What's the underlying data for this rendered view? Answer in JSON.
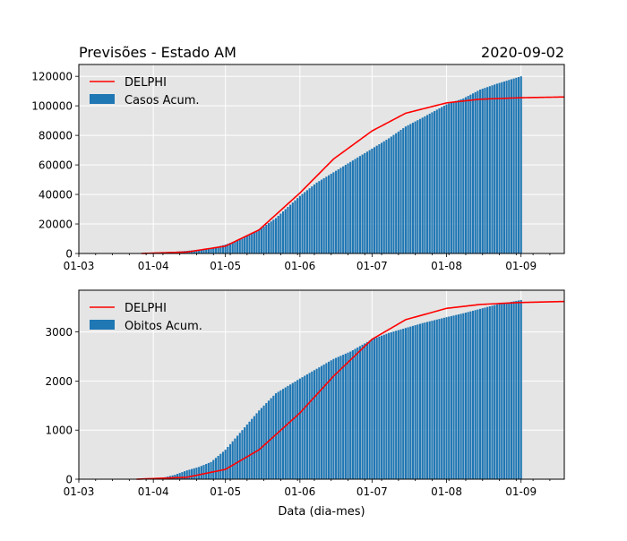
{
  "figure": {
    "title_left": "Previsões - Estado AM",
    "title_right": "2020-09-02",
    "xlabel": "Data (dia-mes)"
  },
  "colors": {
    "bar": "#1f77b4",
    "model_line": "#ff0000",
    "plot_background": "#e5e5e5",
    "grid": "#ffffff"
  },
  "x_axis": {
    "start_date": "2020-03-01",
    "end_date": "2020-09-19",
    "tick_dates": [
      "2020-03-01",
      "2020-04-01",
      "2020-05-01",
      "2020-06-01",
      "2020-07-01",
      "2020-08-01",
      "2020-09-01"
    ],
    "tick_labels": [
      "01-03",
      "01-04",
      "01-05",
      "01-06",
      "01-07",
      "01-08",
      "01-09"
    ]
  },
  "chart_data": [
    {
      "type": "bar",
      "name": "top",
      "ylim": [
        0,
        128000
      ],
      "y_ticks": [
        0,
        20000,
        40000,
        60000,
        80000,
        100000,
        120000
      ],
      "y_tick_labels": [
        "0",
        "20000",
        "40000",
        "60000",
        "80000",
        "100000",
        "120000"
      ],
      "grid": true,
      "legend_position": "top-left",
      "legend": [
        "DELPHI",
        "Casos Acum."
      ],
      "bars": {
        "name": "Casos Acum.",
        "first_date": "2020-03-31",
        "last_date": "2020-09-01",
        "anchors": [
          {
            "date": "2020-03-31",
            "value": 300
          },
          {
            "date": "2020-04-05",
            "value": 800
          },
          {
            "date": "2020-04-10",
            "value": 1200
          },
          {
            "date": "2020-04-15",
            "value": 1800
          },
          {
            "date": "2020-04-20",
            "value": 2500
          },
          {
            "date": "2020-04-25",
            "value": 3500
          },
          {
            "date": "2020-05-01",
            "value": 6000
          },
          {
            "date": "2020-05-08",
            "value": 10000
          },
          {
            "date": "2020-05-15",
            "value": 16000
          },
          {
            "date": "2020-05-22",
            "value": 24000
          },
          {
            "date": "2020-06-01",
            "value": 39000
          },
          {
            "date": "2020-06-08",
            "value": 48000
          },
          {
            "date": "2020-06-15",
            "value": 55000
          },
          {
            "date": "2020-06-22",
            "value": 62000
          },
          {
            "date": "2020-07-01",
            "value": 71000
          },
          {
            "date": "2020-07-08",
            "value": 78000
          },
          {
            "date": "2020-07-15",
            "value": 86000
          },
          {
            "date": "2020-07-22",
            "value": 92000
          },
          {
            "date": "2020-08-01",
            "value": 101000
          },
          {
            "date": "2020-08-08",
            "value": 105000
          },
          {
            "date": "2020-08-15",
            "value": 111000
          },
          {
            "date": "2020-08-22",
            "value": 115000
          },
          {
            "date": "2020-09-01",
            "value": 120000
          }
        ]
      },
      "line": {
        "name": "DELPHI",
        "first_date": "2020-03-27",
        "points": [
          {
            "date": "2020-03-27",
            "value": 0
          },
          {
            "date": "2020-04-15",
            "value": 1000
          },
          {
            "date": "2020-05-01",
            "value": 5000
          },
          {
            "date": "2020-05-15",
            "value": 16000
          },
          {
            "date": "2020-06-01",
            "value": 41000
          },
          {
            "date": "2020-06-15",
            "value": 64000
          },
          {
            "date": "2020-07-01",
            "value": 83000
          },
          {
            "date": "2020-07-15",
            "value": 95000
          },
          {
            "date": "2020-08-01",
            "value": 102000
          },
          {
            "date": "2020-08-15",
            "value": 104500
          },
          {
            "date": "2020-09-01",
            "value": 105500
          },
          {
            "date": "2020-09-19",
            "value": 106000
          }
        ]
      }
    },
    {
      "type": "bar",
      "name": "bottom",
      "ylim": [
        0,
        3850
      ],
      "y_ticks": [
        0,
        1000,
        2000,
        3000
      ],
      "y_tick_labels": [
        "0",
        "1000",
        "2000",
        "3000"
      ],
      "grid": true,
      "legend_position": "top-left",
      "legend": [
        "DELPHI",
        "Obitos Acum."
      ],
      "bars": {
        "name": "Obitos Acum.",
        "first_date": "2020-03-25",
        "last_date": "2020-09-01",
        "anchors": [
          {
            "date": "2020-03-25",
            "value": 1
          },
          {
            "date": "2020-04-05",
            "value": 30
          },
          {
            "date": "2020-04-10",
            "value": 90
          },
          {
            "date": "2020-04-15",
            "value": 180
          },
          {
            "date": "2020-04-20",
            "value": 250
          },
          {
            "date": "2020-04-25",
            "value": 350
          },
          {
            "date": "2020-05-01",
            "value": 600
          },
          {
            "date": "2020-05-08",
            "value": 1000
          },
          {
            "date": "2020-05-15",
            "value": 1400
          },
          {
            "date": "2020-05-22",
            "value": 1750
          },
          {
            "date": "2020-06-01",
            "value": 2050
          },
          {
            "date": "2020-06-08",
            "value": 2250
          },
          {
            "date": "2020-06-15",
            "value": 2450
          },
          {
            "date": "2020-06-22",
            "value": 2600
          },
          {
            "date": "2020-07-01",
            "value": 2850
          },
          {
            "date": "2020-07-08",
            "value": 2980
          },
          {
            "date": "2020-07-15",
            "value": 3080
          },
          {
            "date": "2020-07-22",
            "value": 3180
          },
          {
            "date": "2020-08-01",
            "value": 3300
          },
          {
            "date": "2020-08-08",
            "value": 3380
          },
          {
            "date": "2020-08-15",
            "value": 3470
          },
          {
            "date": "2020-08-22",
            "value": 3560
          },
          {
            "date": "2020-09-01",
            "value": 3650
          }
        ]
      },
      "line": {
        "name": "DELPHI",
        "first_date": "2020-03-25",
        "points": [
          {
            "date": "2020-03-25",
            "value": 0
          },
          {
            "date": "2020-04-15",
            "value": 40
          },
          {
            "date": "2020-05-01",
            "value": 200
          },
          {
            "date": "2020-05-15",
            "value": 600
          },
          {
            "date": "2020-06-01",
            "value": 1350
          },
          {
            "date": "2020-06-15",
            "value": 2100
          },
          {
            "date": "2020-07-01",
            "value": 2850
          },
          {
            "date": "2020-07-15",
            "value": 3250
          },
          {
            "date": "2020-08-01",
            "value": 3480
          },
          {
            "date": "2020-08-15",
            "value": 3560
          },
          {
            "date": "2020-09-01",
            "value": 3600
          },
          {
            "date": "2020-09-19",
            "value": 3620
          }
        ]
      }
    }
  ]
}
